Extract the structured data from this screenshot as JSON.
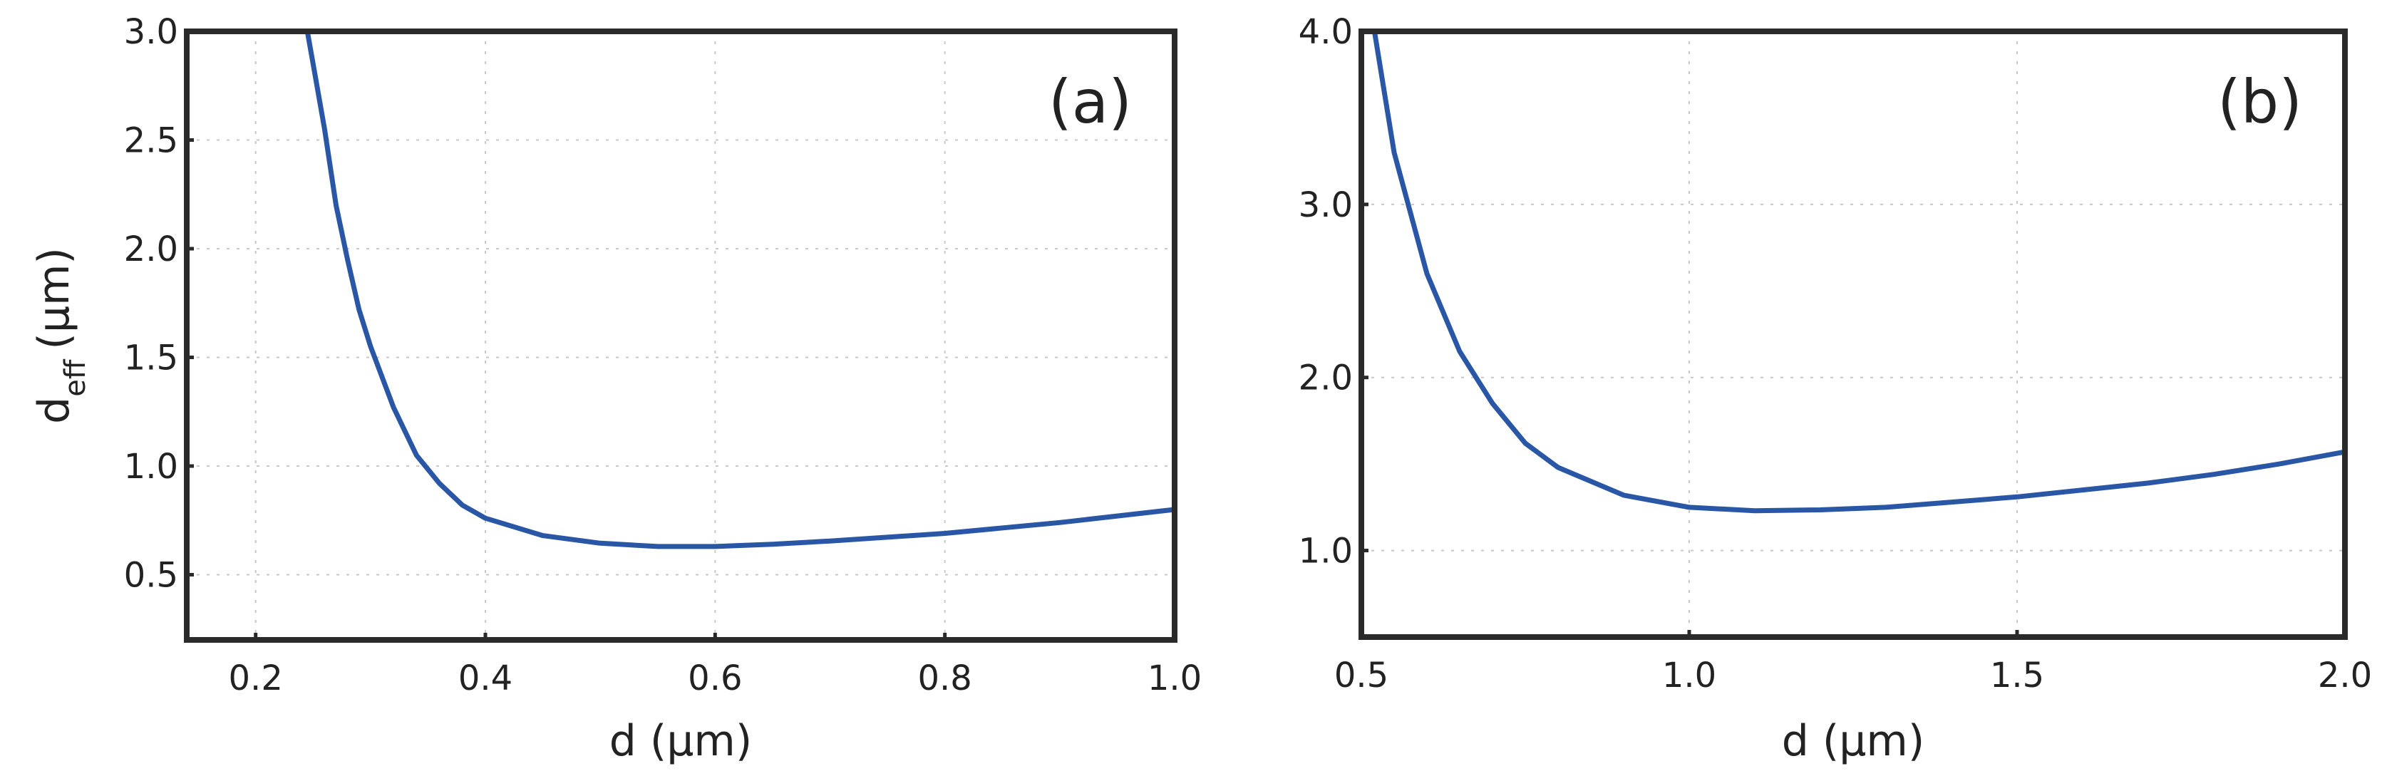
{
  "colors": {
    "curve": "#2a56a6",
    "frame": "#2a2a2a",
    "grid": "#c8c8c8"
  },
  "chart_data": [
    {
      "type": "line",
      "panel_label": "(a)",
      "xlabel": "d (μm)",
      "ylabel_main": "d",
      "ylabel_sub": "eff",
      "ylabel_unit": "(μm)",
      "xlim": [
        0.14,
        1.0
      ],
      "ylim": [
        0.2,
        3.0
      ],
      "xticks": [
        0.2,
        0.4,
        0.6,
        0.8,
        1.0
      ],
      "xtick_labels": [
        "0.2",
        "0.4",
        "0.6",
        "0.8",
        "1.0"
      ],
      "yticks": [
        0.5,
        1.0,
        1.5,
        2.0,
        2.5,
        3.0
      ],
      "ytick_labels": [
        "0.5",
        "1.0",
        "1.5",
        "2.0",
        "2.5",
        "3.0"
      ],
      "grid": true,
      "series": [
        {
          "x": [
            0.245,
            0.25,
            0.26,
            0.27,
            0.28,
            0.29,
            0.3,
            0.32,
            0.34,
            0.36,
            0.38,
            0.4,
            0.45,
            0.5,
            0.55,
            0.6,
            0.65,
            0.7,
            0.8,
            0.9,
            1.0
          ],
          "y": [
            3.0,
            2.85,
            2.55,
            2.2,
            1.95,
            1.72,
            1.55,
            1.27,
            1.05,
            0.92,
            0.82,
            0.76,
            0.68,
            0.645,
            0.63,
            0.63,
            0.64,
            0.655,
            0.69,
            0.74,
            0.8
          ]
        }
      ]
    },
    {
      "type": "line",
      "panel_label": "(b)",
      "xlabel": "d (μm)",
      "xlim": [
        0.5,
        2.0
      ],
      "ylim": [
        0.5,
        4.0
      ],
      "xticks": [
        0.5,
        1.0,
        1.5,
        2.0
      ],
      "xtick_labels": [
        "0.5",
        "1.0",
        "1.5",
        "2.0"
      ],
      "yticks": [
        1.0,
        2.0,
        3.0,
        4.0
      ],
      "ytick_labels": [
        "1.0",
        "2.0",
        "3.0",
        "4.0"
      ],
      "grid": true,
      "series": [
        {
          "x": [
            0.52,
            0.55,
            0.6,
            0.65,
            0.7,
            0.75,
            0.8,
            0.9,
            1.0,
            1.1,
            1.2,
            1.3,
            1.4,
            1.5,
            1.6,
            1.7,
            1.8,
            1.9,
            2.0
          ],
          "y": [
            4.0,
            3.3,
            2.6,
            2.15,
            1.85,
            1.62,
            1.48,
            1.32,
            1.25,
            1.23,
            1.235,
            1.25,
            1.28,
            1.31,
            1.35,
            1.39,
            1.44,
            1.5,
            1.57
          ]
        }
      ]
    }
  ]
}
